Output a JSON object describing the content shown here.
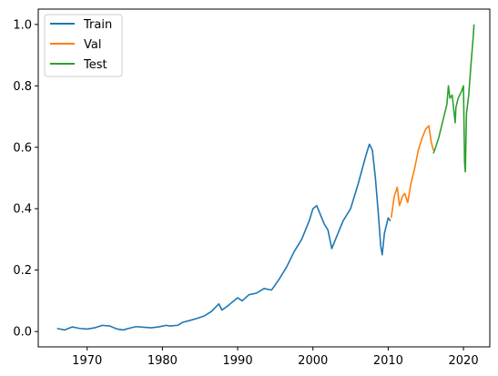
{
  "chart_data": {
    "type": "line",
    "title": "",
    "xlabel": "",
    "ylabel": "",
    "xlim": [
      1963.5,
      2023.5
    ],
    "ylim": [
      -0.05,
      1.05
    ],
    "xticks": [
      1970,
      1980,
      1990,
      2000,
      2010,
      2020
    ],
    "xtick_labels": [
      "1970",
      "1980",
      "1990",
      "2000",
      "2010",
      "2020"
    ],
    "yticks": [
      0.0,
      0.2,
      0.4,
      0.6,
      0.8,
      1.0
    ],
    "ytick_labels": [
      "0.0",
      "0.2",
      "0.4",
      "0.6",
      "0.8",
      "1.0"
    ],
    "grid": false,
    "legend_position": "top-left",
    "series": [
      {
        "name": "Train",
        "color": "#1f77b4",
        "x": [
          1966.0,
          1967.0,
          1968.0,
          1969.0,
          1970.0,
          1971.0,
          1972.0,
          1973.0,
          1974.0,
          1974.8,
          1975.5,
          1976.5,
          1977.5,
          1978.5,
          1979.5,
          1980.5,
          1981.0,
          1982.0,
          1982.7,
          1983.5,
          1984.5,
          1985.5,
          1986.5,
          1987.5,
          1987.9,
          1988.5,
          1989.5,
          1990.0,
          1990.6,
          1991.5,
          1992.5,
          1993.5,
          1994.5,
          1995.5,
          1996.5,
          1997.5,
          1998.5,
          1999.0,
          1999.5,
          2000.0,
          2000.5,
          2001.0,
          2001.5,
          2002.0,
          2002.5,
          2003.0,
          2003.5,
          2004.0,
          2005.0,
          2006.0,
          2007.0,
          2007.5,
          2007.9,
          2008.3,
          2008.7,
          2009.0,
          2009.2,
          2009.5,
          2010.0,
          2010.3
        ],
        "values": [
          0.01,
          0.005,
          0.015,
          0.01,
          0.008,
          0.012,
          0.02,
          0.018,
          0.008,
          0.005,
          0.01,
          0.016,
          0.014,
          0.012,
          0.015,
          0.02,
          0.018,
          0.02,
          0.03,
          0.035,
          0.042,
          0.05,
          0.065,
          0.09,
          0.07,
          0.08,
          0.1,
          0.11,
          0.1,
          0.12,
          0.125,
          0.14,
          0.135,
          0.17,
          0.21,
          0.26,
          0.3,
          0.33,
          0.36,
          0.4,
          0.41,
          0.38,
          0.35,
          0.33,
          0.27,
          0.3,
          0.33,
          0.36,
          0.4,
          0.48,
          0.57,
          0.61,
          0.59,
          0.5,
          0.38,
          0.28,
          0.25,
          0.32,
          0.37,
          0.36
        ]
      },
      {
        "name": "Val",
        "color": "#ff7f0e",
        "x": [
          2010.4,
          2010.8,
          2011.2,
          2011.5,
          2011.9,
          2012.2,
          2012.6,
          2013.0,
          2013.5,
          2014.0,
          2014.5,
          2015.0,
          2015.4,
          2015.7,
          2016.0
        ],
        "values": [
          0.37,
          0.44,
          0.47,
          0.41,
          0.44,
          0.45,
          0.42,
          0.48,
          0.53,
          0.59,
          0.63,
          0.66,
          0.67,
          0.62,
          0.59
        ]
      },
      {
        "name": "Test",
        "color": "#2ca02c",
        "x": [
          2016.0,
          2016.3,
          2016.7,
          2017.0,
          2017.4,
          2017.8,
          2018.0,
          2018.2,
          2018.5,
          2018.9,
          2019.0,
          2019.3,
          2019.7,
          2020.0,
          2020.15,
          2020.25,
          2020.4,
          2020.7,
          2021.0,
          2021.3,
          2021.4
        ],
        "values": [
          0.58,
          0.6,
          0.63,
          0.66,
          0.7,
          0.74,
          0.8,
          0.76,
          0.77,
          0.68,
          0.73,
          0.76,
          0.78,
          0.8,
          0.55,
          0.52,
          0.71,
          0.77,
          0.87,
          0.96,
          1.0
        ]
      }
    ]
  }
}
